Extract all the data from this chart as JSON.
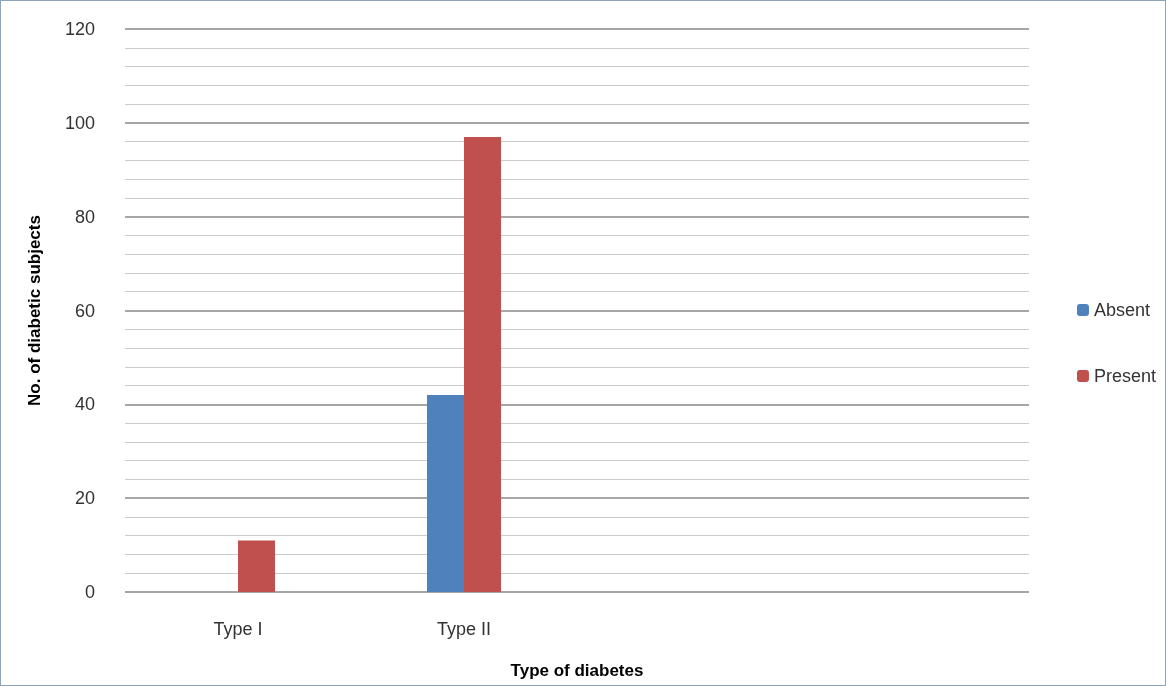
{
  "chart_data": {
    "type": "bar",
    "xlabel": "Type of diabetes",
    "ylabel": "No. of diabetic subjects",
    "categories": [
      "Type I",
      "Type II",
      null,
      null
    ],
    "series": [
      {
        "name": "Absent",
        "color": "#4f81bd",
        "values": [
          0,
          42,
          null,
          null
        ]
      },
      {
        "name": "Present",
        "color": "#c0504d",
        "values": [
          11,
          97,
          null,
          null
        ]
      }
    ],
    "ylim": [
      0,
      120
    ],
    "yticks": [
      0,
      20,
      40,
      60,
      80,
      100,
      120
    ],
    "grid": "y",
    "legend": "right"
  }
}
